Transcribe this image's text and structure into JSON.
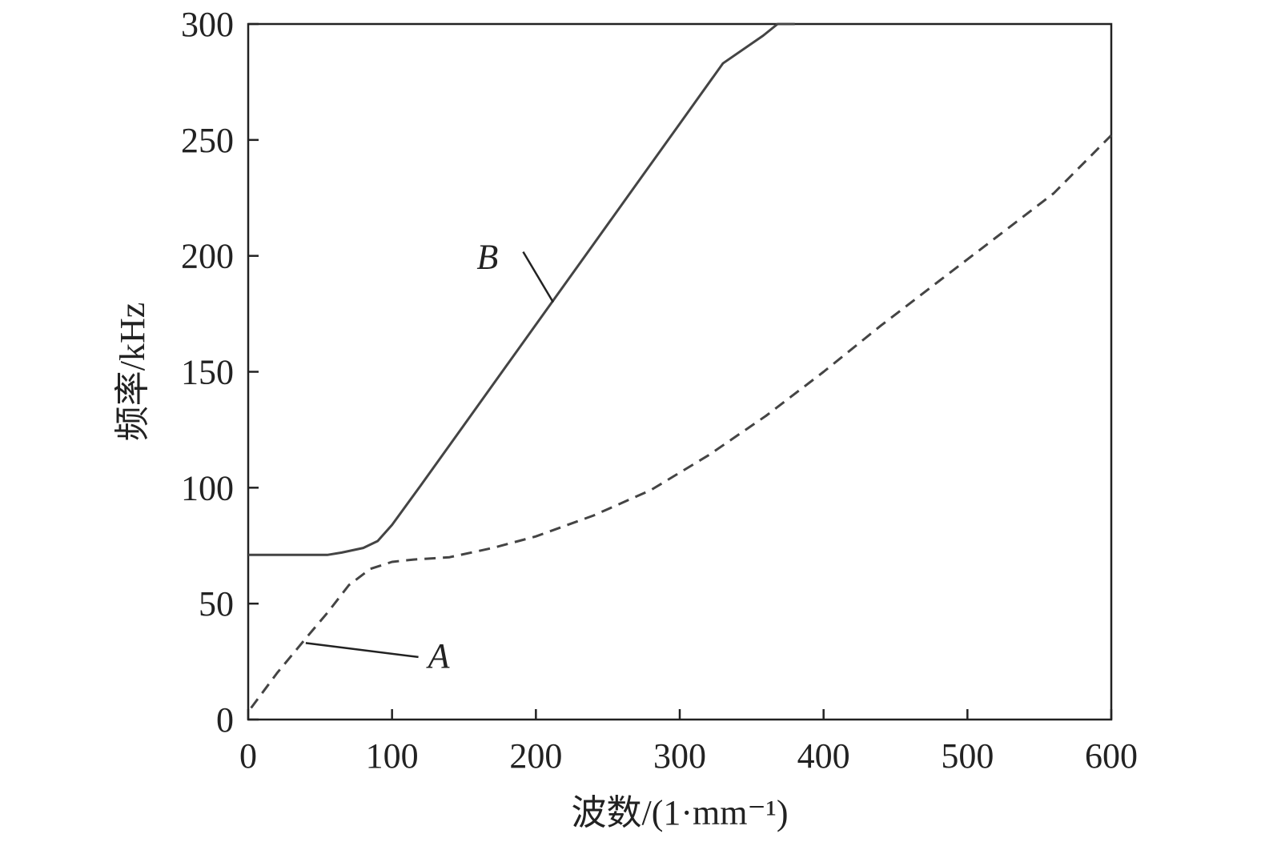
{
  "chart_data": {
    "type": "line",
    "title": "",
    "xlabel": "波数/(1·mm⁻¹)",
    "ylabel": "频率/kHz",
    "xlim": [
      0,
      600
    ],
    "ylim": [
      0,
      300
    ],
    "x_ticks": [
      0,
      100,
      200,
      300,
      400,
      500,
      600
    ],
    "y_ticks": [
      0,
      50,
      100,
      150,
      200,
      250,
      300
    ],
    "x_tick_labels": [
      "0",
      "100",
      "200",
      "300",
      "400",
      "500",
      "600"
    ],
    "y_tick_labels": [
      "0",
      "50",
      "100",
      "150",
      "200",
      "250",
      "300"
    ],
    "grid": false,
    "legend": "none",
    "series": [
      {
        "label": "A",
        "style": "dashed",
        "color": "#444444",
        "x": [
          2,
          20,
          40,
          55,
          70,
          85,
          100,
          115,
          140,
          170,
          200,
          240,
          280,
          320,
          360,
          400,
          440,
          480,
          520,
          560,
          600
        ],
        "y": [
          5,
          20,
          35,
          46,
          58,
          65,
          68,
          69,
          70,
          74,
          79,
          88,
          99,
          114,
          131,
          150,
          170,
          189,
          208,
          227,
          252
        ]
      },
      {
        "label": "B",
        "style": "solid",
        "color": "#444444",
        "x": [
          0,
          20,
          40,
          55,
          65,
          80,
          90,
          100,
          120,
          150,
          180,
          210,
          240,
          270,
          300,
          330,
          358,
          368,
          380
        ],
        "y": [
          71,
          71,
          71,
          71,
          72,
          74,
          77,
          84,
          101,
          127,
          153,
          179,
          205,
          231,
          257,
          283,
          295,
          300,
          300
        ]
      }
    ],
    "annotations": [
      {
        "text": "A",
        "target_x": 40,
        "target_y": 33,
        "label_x": 125,
        "label_y": 28
      },
      {
        "text": "B",
        "target_x": 212,
        "target_y": 180,
        "label_x": 170,
        "label_y": 200
      }
    ]
  }
}
